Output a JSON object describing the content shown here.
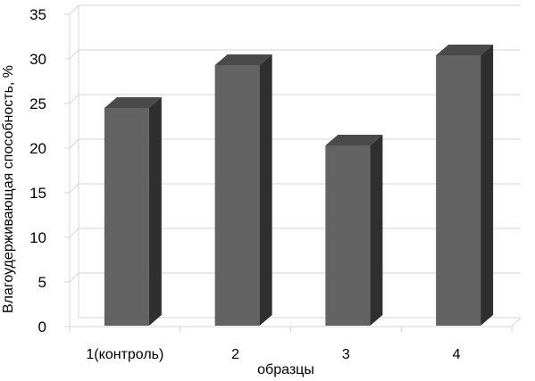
{
  "chart_data": {
    "type": "bar",
    "categories": [
      "1(контроль)",
      "2",
      "3",
      "4"
    ],
    "values": [
      24.5,
      29.3,
      20.3,
      30.4
    ],
    "xlabel": "образцы",
    "ylabel": "Влагоудерживающая способность, %",
    "ylim": [
      0,
      35
    ],
    "yticks": [
      "0",
      "5",
      "10",
      "15",
      "20",
      "25",
      "30",
      "35"
    ],
    "grid": true,
    "legend": "none",
    "style": "3d-column",
    "colors": {
      "bar_front": "#636363",
      "bar_top": "#4a4a4a",
      "bar_side": "#2f2f2f",
      "grid": "#d4d4d4"
    }
  }
}
